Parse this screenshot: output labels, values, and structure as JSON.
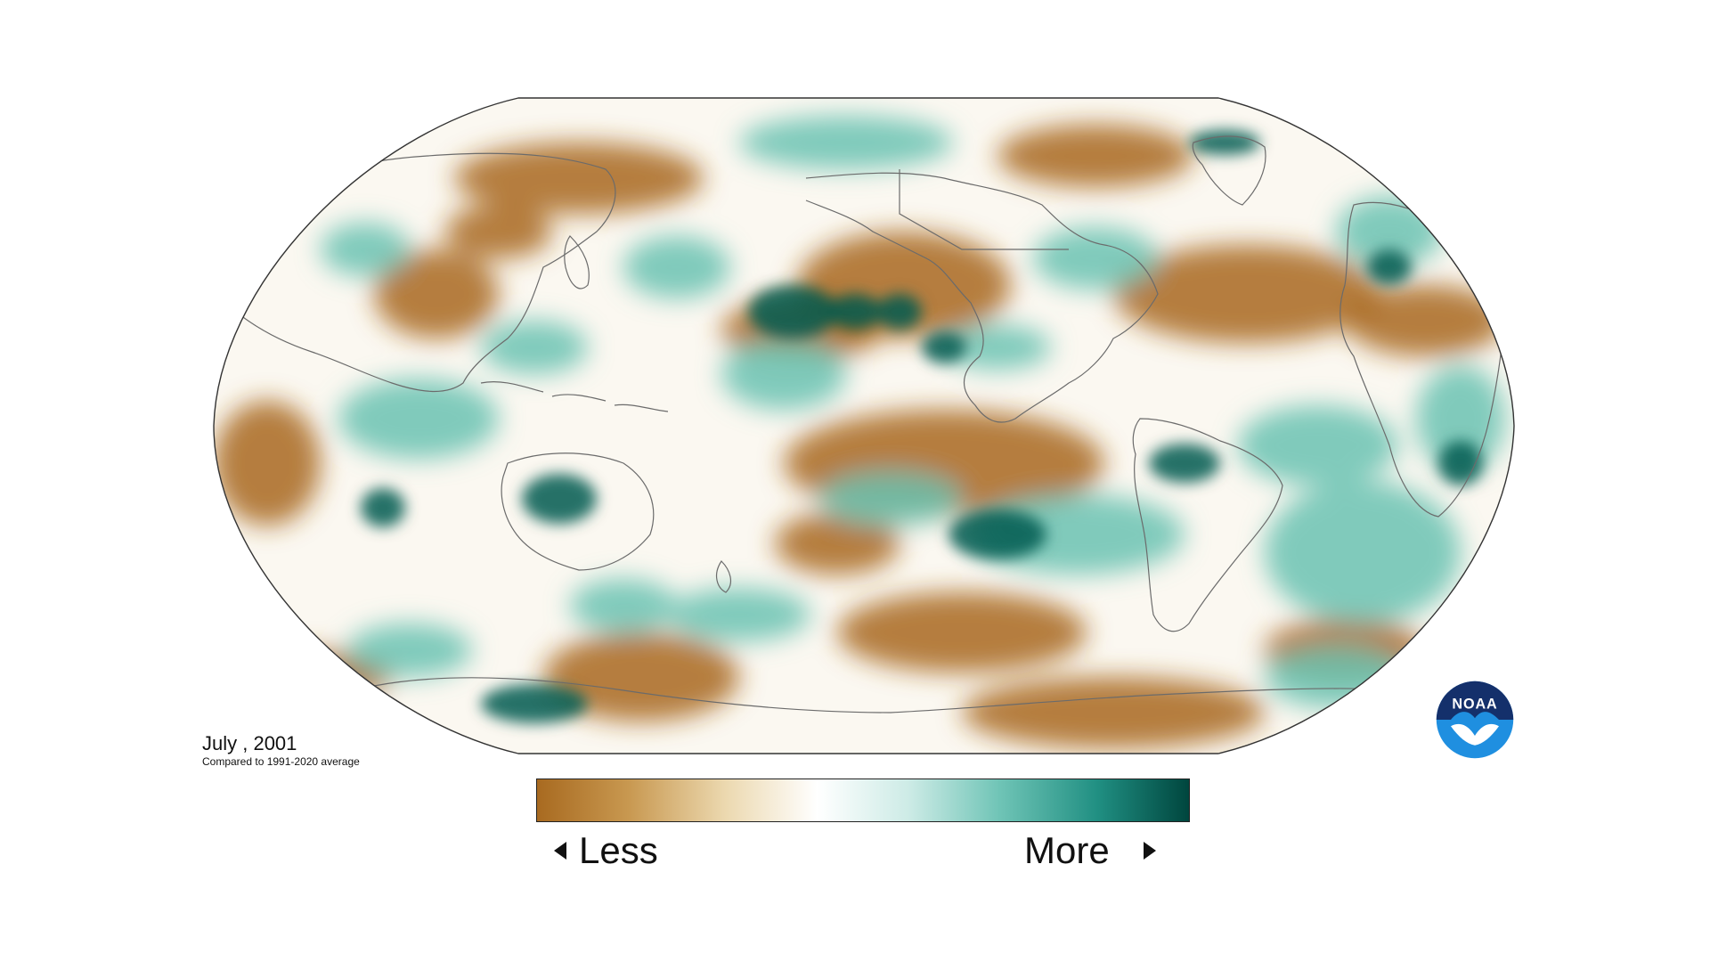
{
  "map": {
    "date_label": "July , 2001",
    "subtitle": "Compared to 1991-2020 average",
    "projection": "Robinson",
    "variable": "precipitation anomaly"
  },
  "legend": {
    "less_label": "Less",
    "more_label": "More",
    "colors": [
      "#a86a20",
      "#c89850",
      "#ecd9b0",
      "#ffffff",
      "#cdebe6",
      "#6fc4b6",
      "#208f82",
      "#00463e"
    ]
  },
  "colors": {
    "dry": "#a8671c",
    "neutral": "#fbf8f1",
    "wet": "#6ac2b2",
    "very_wet": "#01594f",
    "coastline": "#6b6b6b"
  },
  "logo": {
    "name": "noaa-logo",
    "text": "NOAA",
    "colors": {
      "outer": "#1f8fe0",
      "inner": "#14306b"
    }
  }
}
